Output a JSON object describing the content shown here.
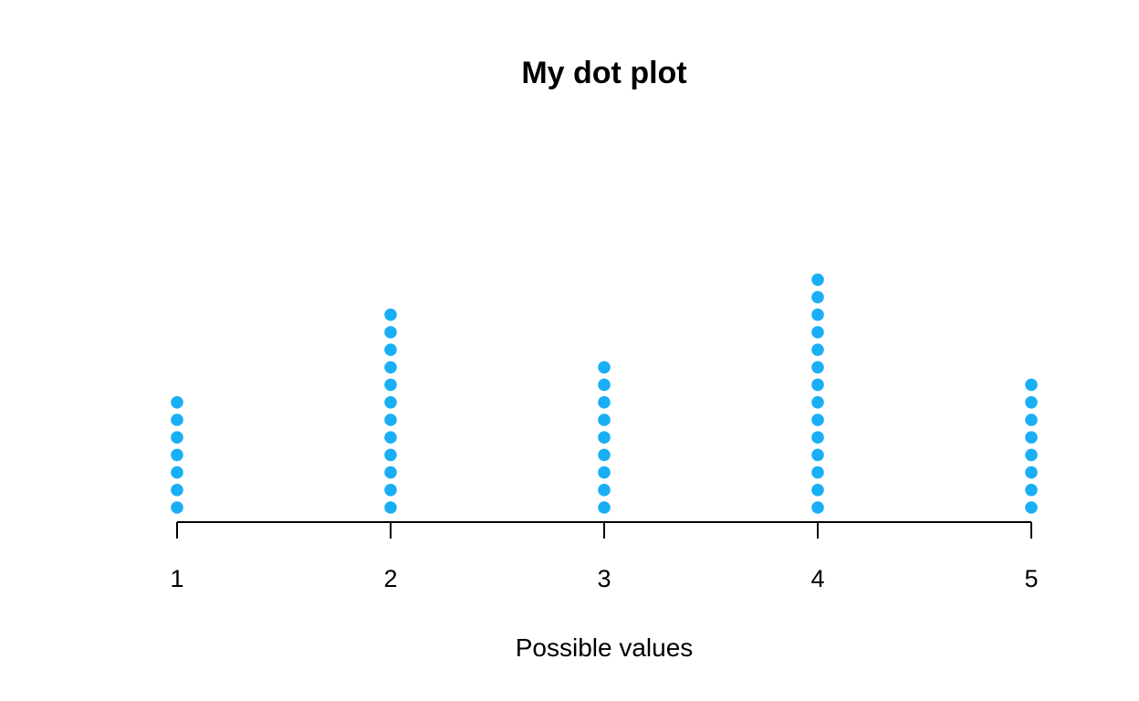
{
  "chart_data": {
    "type": "scatter",
    "subtype": "dot-plot",
    "title": "My dot plot",
    "xlabel": "Possible values",
    "ylabel": "",
    "x_ticks": [
      "1",
      "2",
      "3",
      "4",
      "5"
    ],
    "xlim": [
      1,
      5
    ],
    "grid": false,
    "legend": "none",
    "series": [
      {
        "x": [
          1,
          2,
          3,
          4,
          5
        ],
        "counts": [
          7,
          12,
          9,
          14,
          8
        ]
      }
    ],
    "colors": {
      "dot": "#1aaff5",
      "axis": "#000000",
      "text": "#000000"
    }
  }
}
